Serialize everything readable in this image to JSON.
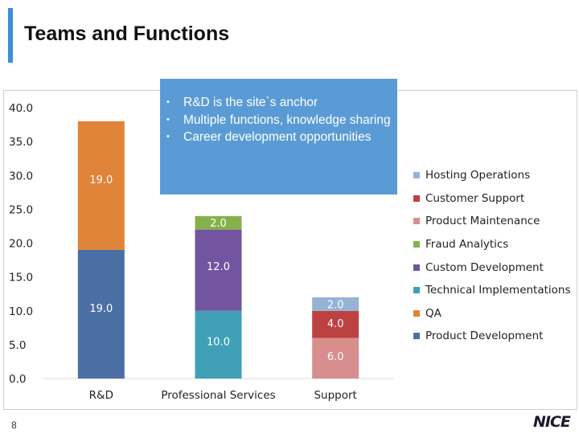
{
  "slide": {
    "title": "Teams and Functions",
    "page_number": "8",
    "logo": "NICE"
  },
  "callout": {
    "bullet": "•",
    "items": [
      "R&D is the site`s anchor",
      "Multiple functions, knowledge sharing",
      "Career development opportunities"
    ]
  },
  "colors": {
    "accent": "#3a8fd6",
    "callout_bg": "#5b9bd5",
    "axis": "#d9d9d9"
  },
  "chart_data": {
    "type": "bar",
    "stacked": true,
    "categories": [
      "R&D",
      "Professional Services",
      "Support"
    ],
    "ylim": [
      0,
      40
    ],
    "yticks": [
      "0.0",
      "5.0",
      "10.0",
      "15.0",
      "20.0",
      "25.0",
      "30.0",
      "35.0",
      "40.0"
    ],
    "legend_position": "right",
    "series": [
      {
        "name": "Product Development",
        "color": "#4a6fa5",
        "values": [
          19.0,
          0,
          0
        ],
        "labels": [
          "19.0",
          "",
          ""
        ],
        "label_color": "#ffffff"
      },
      {
        "name": "QA",
        "color": "#e0843a",
        "values": [
          19.0,
          0,
          0
        ],
        "labels": [
          "19.0",
          "",
          ""
        ],
        "label_color": "#ffffff"
      },
      {
        "name": "Technical Implementations",
        "color": "#3fa0b8",
        "values": [
          0,
          10.0,
          0
        ],
        "labels": [
          "",
          "10.0",
          ""
        ],
        "label_color": "#ffffff"
      },
      {
        "name": "Custom Development",
        "color": "#7254a0",
        "values": [
          0,
          12.0,
          0
        ],
        "labels": [
          "",
          "12.0",
          ""
        ],
        "label_color": "#ffffff"
      },
      {
        "name": "Fraud Analytics",
        "color": "#86b14a",
        "values": [
          0,
          2.0,
          0
        ],
        "labels": [
          "",
          "2.0",
          ""
        ],
        "label_color": "#ffffff"
      },
      {
        "name": "Product Maintenance",
        "color": "#d98e8e",
        "values": [
          0,
          0,
          6.0
        ],
        "labels": [
          "",
          "",
          "6.0"
        ],
        "label_color": "#ffffff"
      },
      {
        "name": "Customer Support",
        "color": "#bc4242",
        "values": [
          0,
          0,
          4.0
        ],
        "labels": [
          "",
          "",
          "4.0"
        ],
        "label_color": "#ffffff"
      },
      {
        "name": "Hosting Operations",
        "color": "#95b3d7",
        "values": [
          0,
          0,
          2.0
        ],
        "labels": [
          "",
          "",
          "2.0"
        ],
        "label_color": "#ffffff"
      }
    ],
    "legend_order": [
      "Hosting Operations",
      "Customer Support",
      "Product Maintenance",
      "Fraud Analytics",
      "Custom Development",
      "Technical Implementations",
      "QA",
      "Product Development"
    ]
  }
}
